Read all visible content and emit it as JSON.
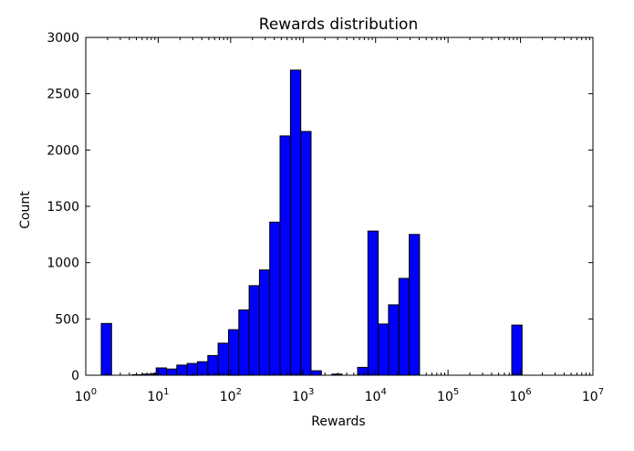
{
  "chart_data": {
    "type": "bar",
    "title": "Rewards distribution",
    "xlabel": "Rewards",
    "ylabel": "Count",
    "xscale": "log",
    "xlim": [
      1,
      10000000
    ],
    "ylim": [
      0,
      3000
    ],
    "grid": false,
    "legend": null,
    "bar_color": "#0000ff",
    "edge_color": "#000000",
    "x_tick_labels": [
      "10^0",
      "10^1",
      "10^2",
      "10^3",
      "10^4",
      "10^5",
      "10^6",
      "10^7"
    ],
    "x_tick_exponents": [
      "0",
      "1",
      "2",
      "3",
      "4",
      "5",
      "6",
      "7"
    ],
    "y_ticks": [
      0,
      500,
      1000,
      1500,
      2000,
      2500,
      3000
    ],
    "bin_width_decades": 0.1425,
    "bins": [
      {
        "log_left": 0.214,
        "count": 460
      },
      {
        "log_left": 0.641,
        "count": 5
      },
      {
        "log_left": 0.784,
        "count": 10
      },
      {
        "log_left": 0.926,
        "count": 15
      },
      {
        "log_left": 0.94,
        "count": 15
      },
      {
        "log_left": 0.972,
        "count": 65
      },
      {
        "log_left": 1.115,
        "count": 55
      },
      {
        "log_left": 1.257,
        "count": 90
      },
      {
        "log_left": 1.4,
        "count": 105
      },
      {
        "log_left": 1.542,
        "count": 120
      },
      {
        "log_left": 1.685,
        "count": 175
      },
      {
        "log_left": 1.827,
        "count": 285
      },
      {
        "log_left": 1.97,
        "count": 405
      },
      {
        "log_left": 2.112,
        "count": 580
      },
      {
        "log_left": 2.255,
        "count": 795
      },
      {
        "log_left": 2.397,
        "count": 935
      },
      {
        "log_left": 2.54,
        "count": 1360
      },
      {
        "log_left": 2.682,
        "count": 2125
      },
      {
        "log_left": 2.825,
        "count": 2710
      },
      {
        "log_left": 2.967,
        "count": 2165
      },
      {
        "log_left": 3.11,
        "count": 40
      },
      {
        "log_left": 3.395,
        "count": 10
      },
      {
        "log_left": 3.752,
        "count": 70
      },
      {
        "log_left": 3.894,
        "count": 1280
      },
      {
        "log_left": 4.037,
        "count": 455
      },
      {
        "log_left": 4.179,
        "count": 625
      },
      {
        "log_left": 4.322,
        "count": 860
      },
      {
        "log_left": 4.464,
        "count": 1250
      },
      {
        "log_left": 5.88,
        "count": 445
      }
    ]
  }
}
